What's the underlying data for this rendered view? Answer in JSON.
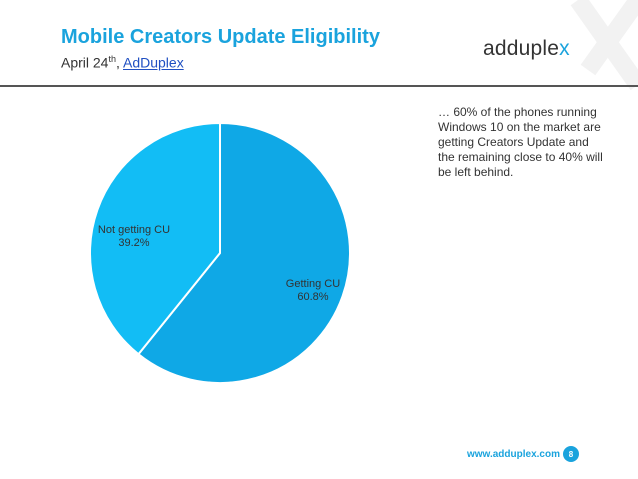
{
  "header": {
    "title": "Mobile Creators Update Eligibility",
    "subtitle_prefix": "April 24",
    "subtitle_sup": "th",
    "subtitle_sep": ", ",
    "subtitle_link": "AdDuplex"
  },
  "logo": {
    "main": "adduple",
    "accent": "x"
  },
  "note": "… 60% of the phones running Windows 10 on the market are getting Creators Update and the remaining close to 40% will be left behind.",
  "footer": {
    "url": "www.adduplex.com",
    "page": "8"
  },
  "colors": {
    "accent": "#1aa3dd",
    "slice_getting": "#0fa8e6",
    "slice_not_getting": "#12bdf5"
  },
  "chart_data": {
    "type": "pie",
    "title": "",
    "categories": [
      "Getting CU",
      "Not getting CU"
    ],
    "values": [
      60.8,
      39.2
    ],
    "labels": [
      {
        "name": "Getting CU",
        "value": "60.8%"
      },
      {
        "name": "Not getting CU",
        "value": "39.2%"
      }
    ],
    "start_angle_deg": 0,
    "direction": "clockwise-from-top",
    "legend": "none"
  }
}
